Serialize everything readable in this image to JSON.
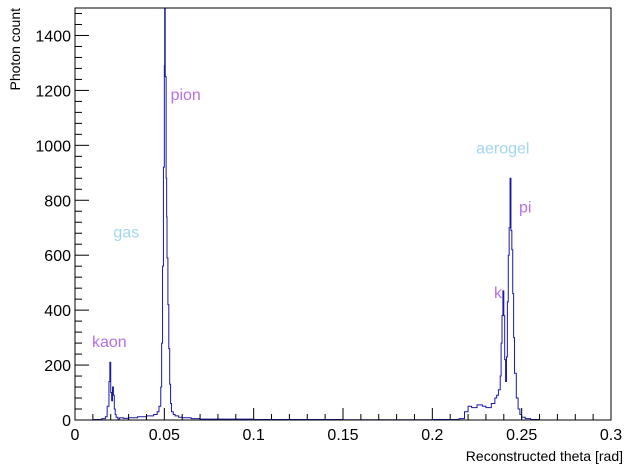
{
  "chart_data": {
    "type": "line",
    "title": "",
    "xlabel": "Reconstructed theta [rad]",
    "ylabel": "Photon count",
    "xlim": [
      0,
      0.3
    ],
    "ylim": [
      0,
      1500
    ],
    "grid": false,
    "x_ticks": [
      0,
      0.05,
      0.1,
      0.15,
      0.2,
      0.25,
      0.3
    ],
    "x_tick_labels": [
      "0",
      "0.05",
      "0.1",
      "0.15",
      "0.2",
      "0.25",
      "0.3"
    ],
    "y_ticks": [
      0,
      200,
      400,
      600,
      800,
      1000,
      1200,
      1400
    ],
    "y_tick_labels": [
      "0",
      "200",
      "400",
      "600",
      "800",
      "1000",
      "1200",
      "1400"
    ],
    "line_color": "#1a1aa6",
    "series": [
      {
        "x": [
          0.0,
          0.005,
          0.01,
          0.015,
          0.017,
          0.018,
          0.019,
          0.0195,
          0.02,
          0.0205,
          0.021,
          0.0215,
          0.022,
          0.0225,
          0.023,
          0.024,
          0.025,
          0.027,
          0.03,
          0.035,
          0.04,
          0.044,
          0.046,
          0.047,
          0.048,
          0.0485,
          0.049,
          0.0495,
          0.05,
          0.0502,
          0.0505,
          0.051,
          0.0513,
          0.0515,
          0.052,
          0.0525,
          0.053,
          0.0535,
          0.054,
          0.055,
          0.056,
          0.058,
          0.06,
          0.065,
          0.07,
          0.1,
          0.15,
          0.2,
          0.215,
          0.218,
          0.22,
          0.222,
          0.225,
          0.228,
          0.23,
          0.233,
          0.235,
          0.236,
          0.237,
          0.238,
          0.2385,
          0.239,
          0.2395,
          0.24,
          0.2405,
          0.241,
          0.2415,
          0.242,
          0.2425,
          0.243,
          0.2435,
          0.244,
          0.2445,
          0.245,
          0.2455,
          0.246,
          0.247,
          0.248,
          0.249,
          0.25,
          0.252,
          0.255,
          0.26,
          0.3
        ],
        "y": [
          0,
          0,
          2,
          5,
          12,
          50,
          140,
          210,
          100,
          70,
          120,
          90,
          40,
          20,
          10,
          4,
          8,
          6,
          8,
          12,
          15,
          20,
          30,
          50,
          120,
          280,
          560,
          920,
          1290,
          1500,
          1250,
          880,
          740,
          590,
          420,
          260,
          130,
          60,
          30,
          20,
          15,
          10,
          8,
          5,
          3,
          2,
          1,
          2,
          5,
          30,
          50,
          45,
          55,
          50,
          45,
          60,
          80,
          90,
          110,
          160,
          280,
          380,
          470,
          380,
          220,
          140,
          230,
          430,
          600,
          700,
          880,
          690,
          620,
          460,
          300,
          170,
          80,
          40,
          20,
          10,
          5,
          2,
          0,
          0
        ]
      }
    ],
    "annotations": [
      {
        "text": "pion",
        "x": 0.0535,
        "y": 1165,
        "color": "#b86fe8"
      },
      {
        "text": "gas",
        "x": 0.0215,
        "y": 665,
        "color": "#9fd6f2"
      },
      {
        "text": "kaon",
        "x": 0.0095,
        "y": 265,
        "color": "#b86fe8"
      },
      {
        "text": "aerogel",
        "x": 0.2245,
        "y": 970,
        "color": "#9fd6f2"
      },
      {
        "text": "pi",
        "x": 0.2485,
        "y": 755,
        "color": "#b86fe8"
      },
      {
        "text": "k",
        "x": 0.2345,
        "y": 445,
        "color": "#b86fe8"
      }
    ]
  }
}
